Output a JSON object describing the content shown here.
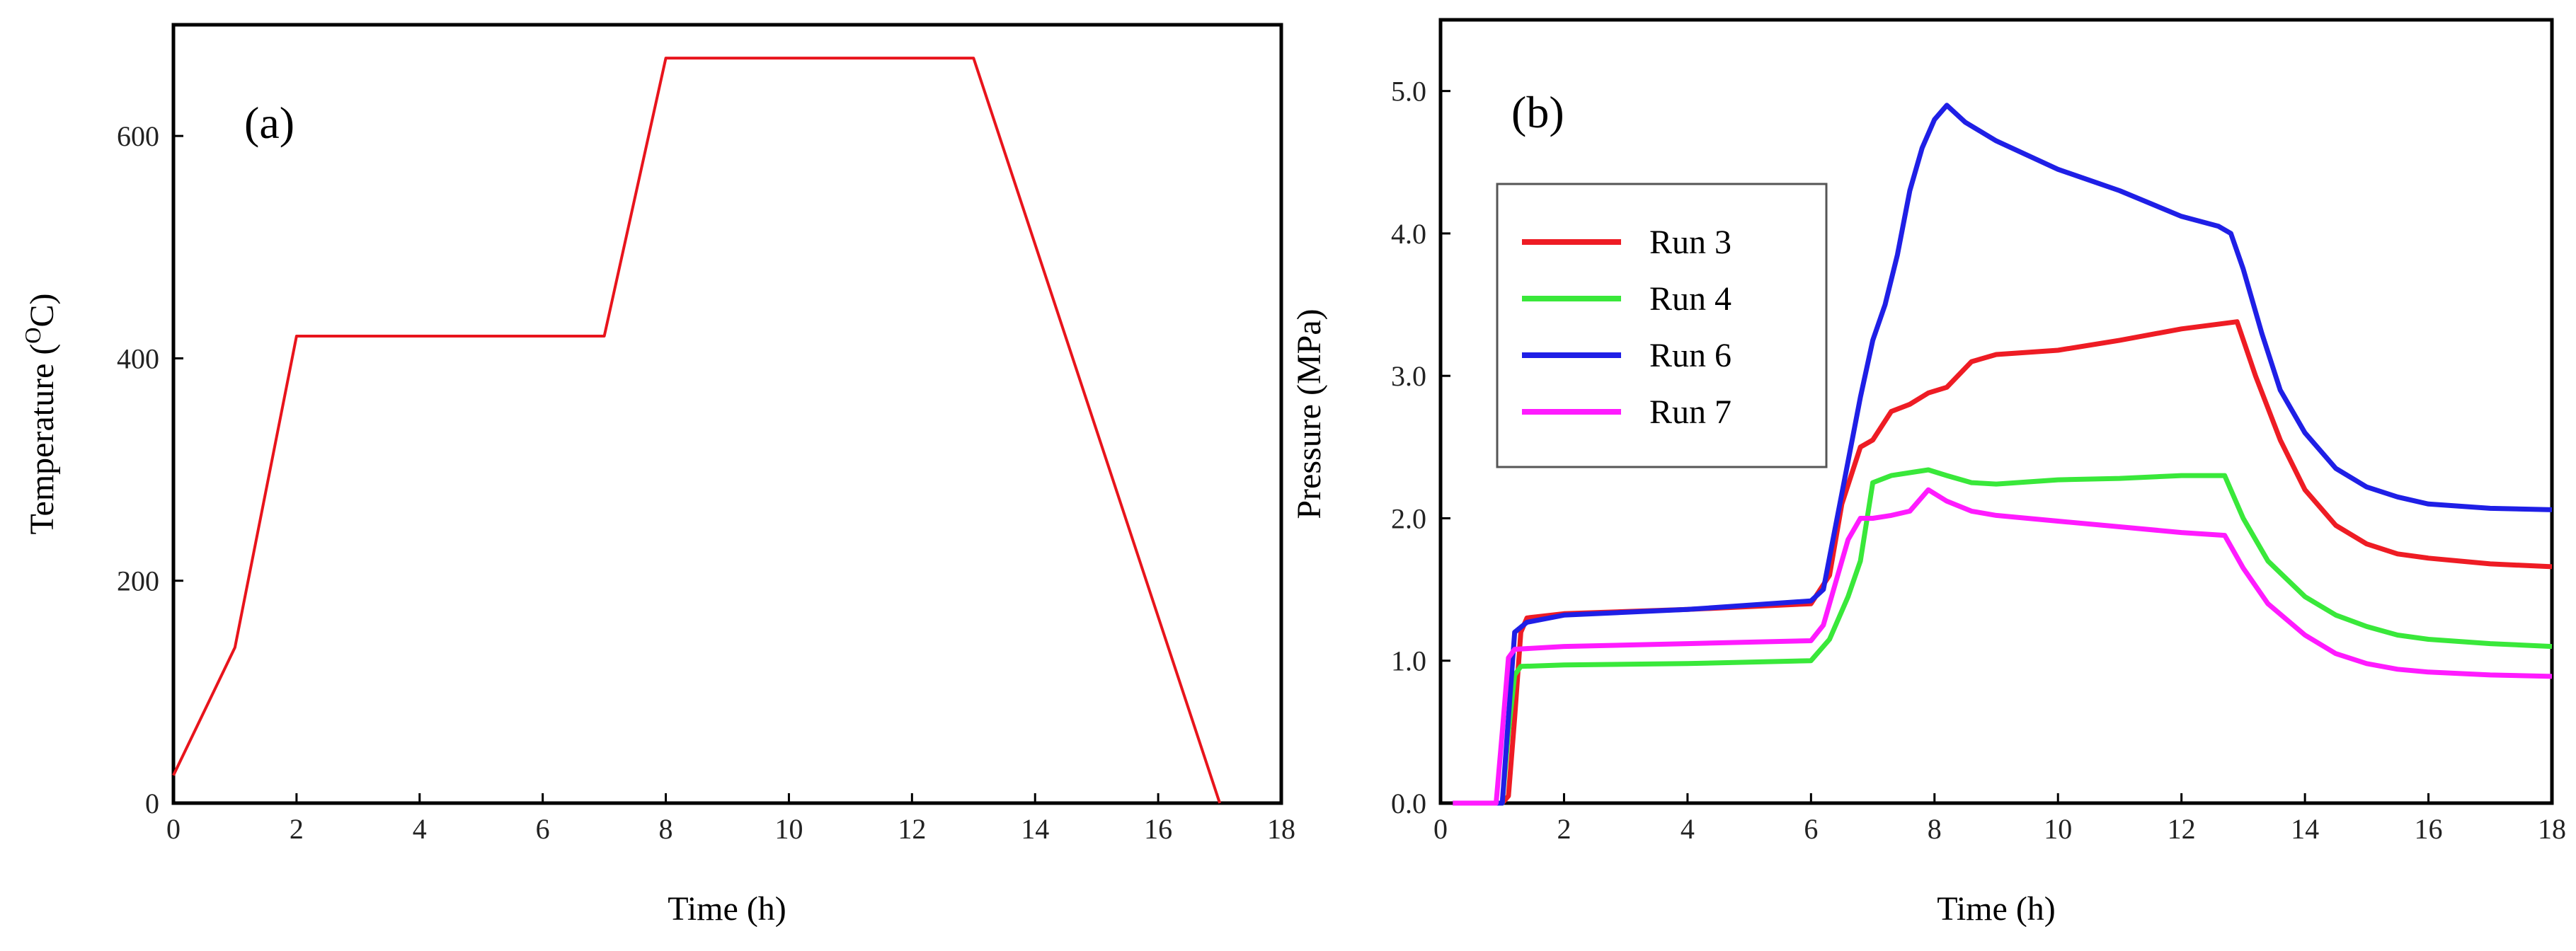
{
  "chart_data": [
    {
      "type": "line",
      "panel_label": "(a)",
      "xlabel": "Time (h)",
      "ylabel_parts": {
        "pre": "Temperature (",
        "sup": "O",
        "post": "C)"
      },
      "xlim": [
        0,
        18
      ],
      "ylim": [
        0,
        700
      ],
      "xticks": [
        0,
        2,
        4,
        6,
        8,
        10,
        12,
        14,
        16,
        18
      ],
      "yticks": [
        0,
        200,
        400,
        600
      ],
      "grid": false,
      "series": [
        {
          "name": "Temperature",
          "color": "#e8141c",
          "x": [
            0,
            1,
            2,
            7,
            8,
            13,
            17
          ],
          "y": [
            25,
            140,
            420,
            420,
            670,
            670,
            0
          ]
        }
      ]
    },
    {
      "type": "line",
      "panel_label": "(b)",
      "xlabel": "Time (h)",
      "ylabel": "Pressure (MPa)",
      "xlim": [
        0,
        18
      ],
      "ylim": [
        0,
        5.5
      ],
      "xticks": [
        0,
        2,
        4,
        6,
        8,
        10,
        12,
        14,
        16,
        18
      ],
      "ytick_labels": [
        "0.0",
        "1.0",
        "2.0",
        "3.0",
        "4.0",
        "5.0"
      ],
      "legend_position": "upper-left",
      "grid": false,
      "series": [
        {
          "name": "Run 3",
          "color": "#ee1c24",
          "x": [
            0.2,
            1.0,
            1.1,
            1.2,
            1.3,
            1.4,
            2,
            4,
            6,
            6.3,
            6.5,
            6.8,
            7.0,
            7.3,
            7.6,
            7.9,
            8.2,
            8.6,
            9,
            10,
            11,
            12,
            12.9,
            13.2,
            13.6,
            14,
            14.5,
            15,
            15.5,
            16,
            17,
            18
          ],
          "y": [
            0,
            0,
            0.05,
            0.6,
            1.2,
            1.3,
            1.33,
            1.36,
            1.4,
            1.6,
            2.1,
            2.5,
            2.55,
            2.75,
            2.8,
            2.88,
            2.92,
            3.1,
            3.15,
            3.18,
            3.25,
            3.33,
            3.38,
            3.0,
            2.55,
            2.2,
            1.95,
            1.82,
            1.75,
            1.72,
            1.68,
            1.66
          ]
        },
        {
          "name": "Run 4",
          "color": "#39e83a",
          "x": [
            0.2,
            1.0,
            1.1,
            1.2,
            1.3,
            2,
            4,
            6,
            6.3,
            6.6,
            6.8,
            7.0,
            7.3,
            7.6,
            7.9,
            8.2,
            8.6,
            9,
            10,
            11,
            12,
            12.7,
            13.0,
            13.4,
            14,
            14.5,
            15,
            15.5,
            16,
            17,
            18
          ],
          "y": [
            0,
            0,
            0.5,
            0.9,
            0.96,
            0.97,
            0.98,
            1.0,
            1.15,
            1.45,
            1.7,
            2.25,
            2.3,
            2.32,
            2.34,
            2.3,
            2.25,
            2.24,
            2.27,
            2.28,
            2.3,
            2.3,
            2.0,
            1.7,
            1.45,
            1.32,
            1.24,
            1.18,
            1.15,
            1.12,
            1.1
          ]
        },
        {
          "name": "Run 6",
          "color": "#1f1fe6",
          "x": [
            0.2,
            1.0,
            1.1,
            1.2,
            1.4,
            2,
            4,
            6,
            6.2,
            6.4,
            6.6,
            6.8,
            7.0,
            7.2,
            7.4,
            7.6,
            7.8,
            8.0,
            8.2,
            8.5,
            9,
            10,
            11,
            12,
            12.6,
            12.8,
            13.0,
            13.3,
            13.6,
            14,
            14.5,
            15,
            15.5,
            16,
            17,
            18
          ],
          "y": [
            0,
            0,
            0.6,
            1.2,
            1.27,
            1.32,
            1.36,
            1.42,
            1.5,
            1.95,
            2.4,
            2.85,
            3.25,
            3.5,
            3.85,
            4.3,
            4.6,
            4.8,
            4.9,
            4.78,
            4.65,
            4.45,
            4.3,
            4.12,
            4.05,
            4.0,
            3.75,
            3.3,
            2.9,
            2.6,
            2.35,
            2.22,
            2.15,
            2.1,
            2.07,
            2.06
          ]
        },
        {
          "name": "Run 7",
          "color": "#ff1bff",
          "x": [
            0.2,
            0.9,
            1.0,
            1.1,
            1.2,
            2,
            4,
            6,
            6.2,
            6.4,
            6.6,
            6.8,
            7.0,
            7.3,
            7.6,
            7.9,
            8.2,
            8.6,
            9,
            10,
            11,
            12,
            12.7,
            13.0,
            13.4,
            14,
            14.5,
            15,
            15.5,
            16,
            17,
            18
          ],
          "y": [
            0,
            0,
            0.5,
            1.02,
            1.08,
            1.1,
            1.12,
            1.14,
            1.25,
            1.55,
            1.85,
            2.0,
            2.0,
            2.02,
            2.05,
            2.2,
            2.12,
            2.05,
            2.02,
            1.98,
            1.94,
            1.9,
            1.88,
            1.65,
            1.4,
            1.18,
            1.05,
            0.98,
            0.94,
            0.92,
            0.9,
            0.89
          ]
        }
      ]
    }
  ]
}
